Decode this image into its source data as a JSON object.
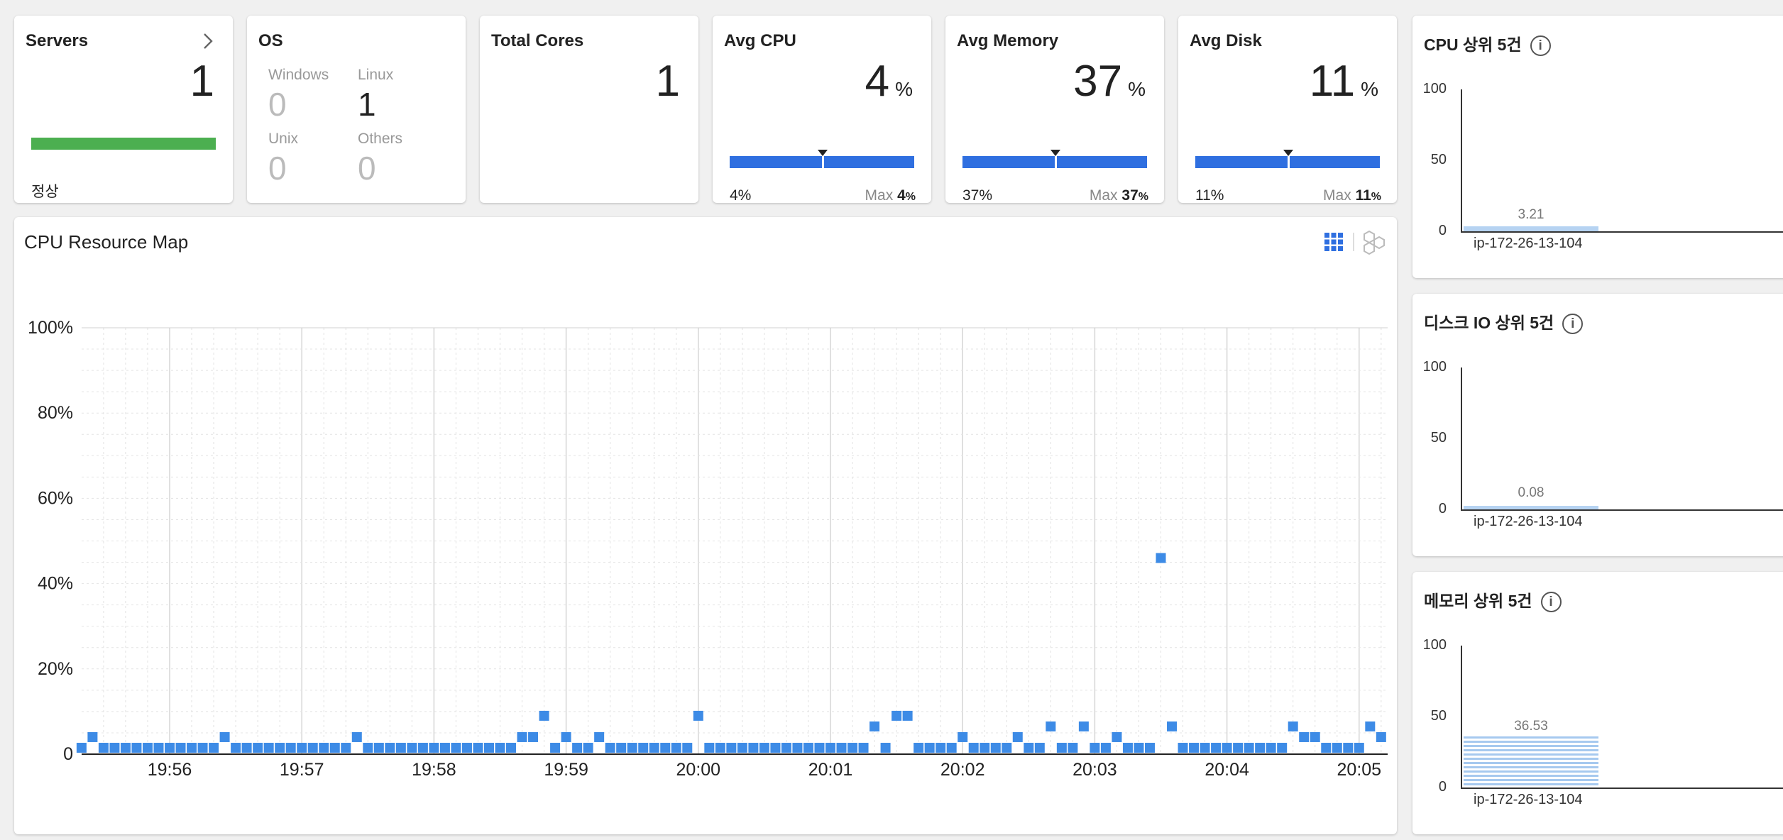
{
  "servers": {
    "title": "Servers",
    "count": "1",
    "status": "정상",
    "chevron": "chevron-right-icon"
  },
  "os": {
    "title": "OS",
    "windows_label": "Windows",
    "windows_count": "0",
    "linux_label": "Linux",
    "linux_count": "1",
    "unix_label": "Unix",
    "unix_count": "0",
    "others_label": "Others",
    "others_count": "0"
  },
  "cores": {
    "title": "Total Cores",
    "count": "1"
  },
  "avg_cpu": {
    "title": "Avg CPU",
    "value": "4",
    "unit": "%",
    "min_label": "4%",
    "max_prefix": "Max",
    "max_value": "4",
    "max_unit": "%"
  },
  "avg_memory": {
    "title": "Avg Memory",
    "value": "37",
    "unit": "%",
    "min_label": "37%",
    "max_prefix": "Max",
    "max_value": "37",
    "max_unit": "%"
  },
  "avg_disk": {
    "title": "Avg Disk",
    "value": "11",
    "unit": "%",
    "min_label": "11%",
    "max_prefix": "Max",
    "max_value": "11",
    "max_unit": "%"
  },
  "resource_map": {
    "title": "CPU Resource Map",
    "view_grid_icon": "grid-view-icon",
    "view_hex_icon": "hexagon-view-icon"
  },
  "top_panels": [
    {
      "title": "CPU 상위 5건",
      "host": "ip-172-26-13-104",
      "value": 3.21,
      "value_label": "3.21",
      "ticks": [
        "100",
        "50",
        "0"
      ]
    },
    {
      "title": "디스크 IO 상위 5건",
      "host": "ip-172-26-13-104",
      "value": 0.08,
      "value_label": "0.08",
      "ticks": [
        "100",
        "50",
        "0"
      ]
    },
    {
      "title": "메모리 상위 5건",
      "host": "ip-172-26-13-104",
      "value": 36.53,
      "value_label": "36.53",
      "ticks": [
        "100",
        "50",
        "0"
      ]
    }
  ],
  "colors": {
    "accent": "#2f6fe0",
    "point": "#3d8be6",
    "healthy": "#4caf50"
  },
  "chart_data": {
    "type": "scatter",
    "title": "CPU Resource Map",
    "y_tick_labels": [
      "100%",
      "80%",
      "60%",
      "40%",
      "20%",
      "0"
    ],
    "x_tick_labels": [
      "19:56",
      "19:57",
      "19:58",
      "19:59",
      "20:00",
      "20:01",
      "20:02",
      "20:03",
      "20:04",
      "20:05"
    ],
    "ylim": [
      0,
      100
    ],
    "grid": true,
    "point_interval_seconds": 5,
    "first_point_offset_seconds": -40,
    "y_values": [
      1.5,
      4,
      1.5,
      1.5,
      1.5,
      1.5,
      1.5,
      1.5,
      1.5,
      1.5,
      1.5,
      1.5,
      1.5,
      4,
      1.5,
      1.5,
      1.5,
      1.5,
      1.5,
      1.5,
      1.5,
      1.5,
      1.5,
      1.5,
      1.5,
      4,
      1.5,
      1.5,
      1.5,
      1.5,
      1.5,
      1.5,
      1.5,
      1.5,
      1.5,
      1.5,
      1.5,
      1.5,
      1.5,
      1.5,
      4,
      4,
      9,
      1.5,
      4,
      1.5,
      1.5,
      4,
      1.5,
      1.5,
      1.5,
      1.5,
      1.5,
      1.5,
      1.5,
      1.5,
      9,
      1.5,
      1.5,
      1.5,
      1.5,
      1.5,
      1.5,
      1.5,
      1.5,
      1.5,
      1.5,
      1.5,
      1.5,
      1.5,
      1.5,
      1.5,
      6.5,
      1.5,
      9,
      9,
      1.5,
      1.5,
      1.5,
      1.5,
      4,
      1.5,
      1.5,
      1.5,
      1.5,
      4,
      1.5,
      1.5,
      6.5,
      1.5,
      1.5,
      6.5,
      1.5,
      1.5,
      4,
      1.5,
      1.5,
      1.5,
      46,
      6.5,
      1.5,
      1.5,
      1.5,
      1.5,
      1.5,
      1.5,
      1.5,
      1.5,
      1.5,
      1.5,
      6.5,
      4,
      4,
      1.5,
      1.5,
      1.5,
      1.5,
      6.5,
      4
    ]
  }
}
